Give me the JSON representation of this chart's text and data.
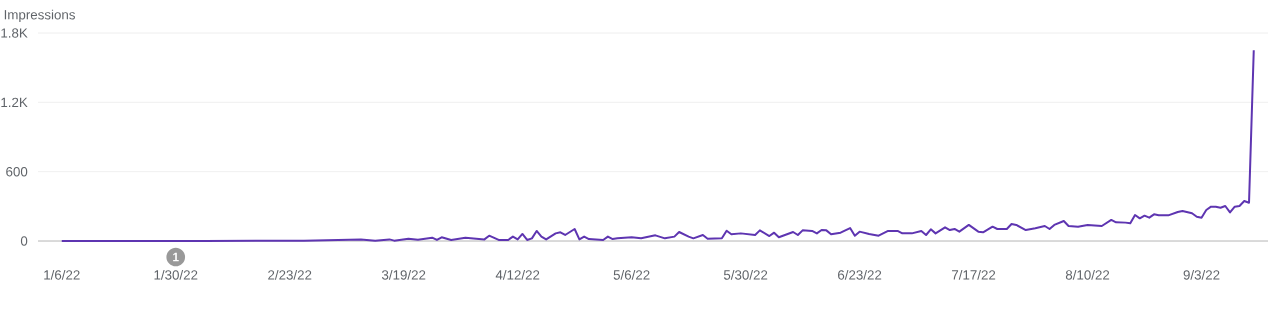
{
  "chart_data": {
    "type": "line",
    "ylabel": "Impressions",
    "color": "#5e35b1",
    "grid": "y",
    "marker": "none",
    "line_style": "solid",
    "xlim": [
      "2022-01-01",
      "2022-09-17"
    ],
    "ylim": [
      0,
      1800
    ],
    "xticks": [
      {
        "value": "2022-01-06",
        "label": "1/6/22"
      },
      {
        "value": "2022-01-30",
        "label": "1/30/22"
      },
      {
        "value": "2022-02-23",
        "label": "2/23/22"
      },
      {
        "value": "2022-03-19",
        "label": "3/19/22"
      },
      {
        "value": "2022-04-12",
        "label": "4/12/22"
      },
      {
        "value": "2022-05-06",
        "label": "5/6/22"
      },
      {
        "value": "2022-05-30",
        "label": "5/30/22"
      },
      {
        "value": "2022-06-23",
        "label": "6/23/22"
      },
      {
        "value": "2022-07-17",
        "label": "7/17/22"
      },
      {
        "value": "2022-08-10",
        "label": "8/10/22"
      },
      {
        "value": "2022-09-03",
        "label": "9/3/22"
      }
    ],
    "yticks": [
      0,
      600,
      {
        "value": 1200,
        "label": "1.2K"
      },
      {
        "value": 1800,
        "label": "1.8K"
      }
    ],
    "annotations": [
      "1"
    ],
    "x": [
      "2022-01-06",
      "2022-02-05",
      "2022-02-26",
      "2022-03-10",
      "2022-03-13",
      "2022-03-16",
      "2022-03-17",
      "2022-03-20",
      "2022-03-22",
      "2022-03-25",
      "2022-03-26",
      "2022-03-27",
      "2022-03-29",
      "2022-04-01",
      "2022-04-05",
      "2022-04-06",
      "2022-04-08",
      "2022-04-10",
      "2022-04-11",
      "2022-04-12",
      "2022-04-13",
      "2022-04-14",
      "2022-04-15",
      "2022-04-16",
      "2022-04-17",
      "2022-04-18",
      "2022-04-20",
      "2022-04-21",
      "2022-04-22",
      "2022-04-24",
      "2022-04-25",
      "2022-04-26",
      "2022-04-27",
      "2022-04-30",
      "2022-05-01",
      "2022-05-02",
      "2022-05-03",
      "2022-05-06",
      "2022-05-08",
      "2022-05-11",
      "2022-05-13",
      "2022-05-15",
      "2022-05-16",
      "2022-05-18",
      "2022-05-19",
      "2022-05-21",
      "2022-05-22",
      "2022-05-25",
      "2022-05-26",
      "2022-05-27",
      "2022-05-29",
      "2022-06-01",
      "2022-06-02",
      "2022-06-04",
      "2022-06-05",
      "2022-06-06",
      "2022-06-09",
      "2022-06-10",
      "2022-06-11",
      "2022-06-13",
      "2022-06-14",
      "2022-06-15",
      "2022-06-16",
      "2022-06-17",
      "2022-06-19",
      "2022-06-21",
      "2022-06-22",
      "2022-06-23",
      "2022-06-25",
      "2022-06-27",
      "2022-06-29",
      "2022-07-01",
      "2022-07-02",
      "2022-07-04",
      "2022-07-06",
      "2022-07-07",
      "2022-07-08",
      "2022-07-09",
      "2022-07-11",
      "2022-07-12",
      "2022-07-13",
      "2022-07-14",
      "2022-07-16",
      "2022-07-18",
      "2022-07-19",
      "2022-07-21",
      "2022-07-22",
      "2022-07-24",
      "2022-07-25",
      "2022-07-26",
      "2022-07-28",
      "2022-07-30",
      "2022-08-01",
      "2022-08-02",
      "2022-08-03",
      "2022-08-05",
      "2022-08-06",
      "2022-08-08",
      "2022-08-10",
      "2022-08-13",
      "2022-08-15",
      "2022-08-16",
      "2022-08-18",
      "2022-08-19",
      "2022-08-20",
      "2022-08-21",
      "2022-08-22",
      "2022-08-23",
      "2022-08-24",
      "2022-08-25",
      "2022-08-27",
      "2022-08-29",
      "2022-08-30",
      "2022-09-01",
      "2022-09-02",
      "2022-09-03",
      "2022-09-04",
      "2022-09-05",
      "2022-09-06",
      "2022-09-07",
      "2022-09-08",
      "2022-09-09",
      "2022-09-10",
      "2022-09-11",
      "2022-09-12",
      "2022-09-13",
      "2022-09-14"
    ],
    "values": [
      0,
      0,
      3,
      14,
      3,
      14,
      3,
      20,
      10,
      29,
      9,
      32,
      9,
      29,
      14,
      46,
      9,
      9,
      38,
      14,
      61,
      9,
      23,
      87,
      38,
      14,
      66,
      75,
      52,
      104,
      14,
      38,
      17,
      9,
      38,
      17,
      23,
      32,
      23,
      49,
      23,
      38,
      78,
      38,
      23,
      52,
      20,
      23,
      89,
      58,
      66,
      52,
      92,
      43,
      72,
      32,
      78,
      52,
      92,
      87,
      66,
      95,
      92,
      58,
      72,
      112,
      46,
      81,
      61,
      46,
      87,
      87,
      66,
      66,
      87,
      52,
      101,
      66,
      118,
      95,
      104,
      81,
      139,
      81,
      75,
      124,
      104,
      104,
      147,
      139,
      95,
      110,
      130,
      104,
      139,
      173,
      130,
      124,
      139,
      130,
      182,
      162,
      159,
      153,
      225,
      196,
      219,
      202,
      231,
      222,
      222,
      251,
      260,
      240,
      210,
      202,
      268,
      297,
      297,
      288,
      303,
      248,
      297,
      303,
      346,
      331,
      1650
    ]
  }
}
